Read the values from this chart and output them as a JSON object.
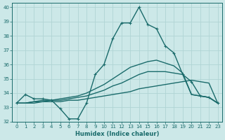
{
  "xlabel": "Humidex (Indice chaleur)",
  "ylabel": "",
  "xlim": [
    -0.5,
    23.5
  ],
  "ylim": [
    32,
    40.3
  ],
  "yticks": [
    32,
    33,
    34,
    35,
    36,
    37,
    38,
    39,
    40
  ],
  "xticks": [
    0,
    1,
    2,
    3,
    4,
    5,
    6,
    7,
    8,
    9,
    10,
    11,
    12,
    13,
    14,
    15,
    16,
    17,
    18,
    19,
    20,
    21,
    22,
    23
  ],
  "bg_color": "#cce8e8",
  "grid_color": "#b0d4d4",
  "line_color": "#1a6b6b",
  "lines": [
    {
      "x": [
        0,
        1,
        2,
        3,
        4,
        5,
        6,
        7,
        8,
        9,
        10,
        11,
        12,
        13,
        14,
        15,
        16,
        17,
        18,
        19,
        20,
        21,
        22,
        23
      ],
      "y": [
        33.3,
        33.9,
        33.6,
        33.6,
        33.5,
        32.9,
        32.2,
        32.2,
        33.3,
        35.3,
        36.0,
        37.8,
        38.9,
        38.9,
        40.0,
        38.8,
        38.5,
        37.3,
        36.8,
        35.3,
        34.8,
        33.8,
        33.7,
        33.3
      ],
      "marker": true,
      "lw": 1.0
    },
    {
      "x": [
        0,
        1,
        2,
        3,
        4,
        5,
        6,
        7,
        8,
        9,
        10,
        11,
        12,
        13,
        14,
        15,
        16,
        17,
        18,
        19,
        20,
        21,
        22,
        23
      ],
      "y": [
        33.3,
        33.3,
        33.3,
        33.4,
        33.4,
        33.4,
        33.5,
        33.5,
        33.6,
        33.7,
        33.8,
        33.9,
        34.0,
        34.1,
        34.3,
        34.4,
        34.5,
        34.6,
        34.7,
        34.8,
        34.9,
        34.8,
        34.7,
        33.3
      ],
      "marker": false,
      "lw": 1.0
    },
    {
      "x": [
        0,
        1,
        2,
        3,
        4,
        5,
        6,
        7,
        8,
        9,
        10,
        11,
        12,
        13,
        14,
        15,
        16,
        17,
        18,
        19,
        20,
        21,
        22,
        23
      ],
      "y": [
        33.3,
        33.3,
        33.4,
        33.4,
        33.5,
        33.5,
        33.6,
        33.7,
        33.8,
        34.0,
        34.2,
        34.5,
        34.7,
        35.0,
        35.3,
        35.5,
        35.5,
        35.5,
        35.4,
        35.3,
        33.9,
        33.8,
        33.7,
        33.3
      ],
      "marker": false,
      "lw": 1.0
    },
    {
      "x": [
        0,
        1,
        2,
        3,
        4,
        5,
        6,
        7,
        8,
        9,
        10,
        11,
        12,
        13,
        14,
        15,
        16,
        17,
        18,
        19,
        20,
        21,
        22,
        23
      ],
      "y": [
        33.3,
        33.3,
        33.4,
        33.5,
        33.5,
        33.6,
        33.7,
        33.8,
        34.0,
        34.3,
        34.6,
        35.0,
        35.4,
        35.8,
        36.0,
        36.2,
        36.3,
        36.1,
        35.9,
        35.4,
        33.9,
        33.8,
        33.7,
        33.3
      ],
      "marker": false,
      "lw": 1.0
    }
  ]
}
